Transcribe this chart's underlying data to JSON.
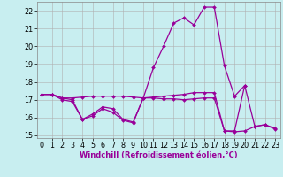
{
  "x": [
    0,
    1,
    2,
    3,
    4,
    5,
    6,
    7,
    8,
    9,
    10,
    11,
    12,
    13,
    14,
    15,
    16,
    17,
    18,
    19,
    20,
    21,
    22,
    23
  ],
  "line1": [
    17.3,
    17.3,
    17.1,
    17.1,
    17.15,
    17.2,
    17.2,
    17.2,
    17.2,
    17.15,
    17.1,
    17.15,
    17.2,
    17.25,
    17.3,
    17.4,
    17.4,
    17.4,
    15.25,
    15.25,
    17.8,
    15.5,
    15.6,
    15.4
  ],
  "line2": [
    17.3,
    17.3,
    17.1,
    17.0,
    15.9,
    16.2,
    16.6,
    16.5,
    15.9,
    15.75,
    17.1,
    18.8,
    20.0,
    21.3,
    21.6,
    21.2,
    22.2,
    22.2,
    18.9,
    17.2,
    17.8,
    null,
    null,
    null
  ],
  "line3": [
    17.3,
    17.3,
    17.0,
    16.9,
    15.9,
    16.1,
    16.5,
    16.3,
    15.85,
    15.7,
    17.1,
    17.1,
    17.05,
    17.05,
    17.0,
    17.05,
    17.1,
    17.1,
    15.25,
    15.2,
    15.25,
    15.5,
    15.6,
    15.35
  ],
  "line_color": "#990099",
  "bg_color": "#c8eef0",
  "grid_color": "#b0b0b0",
  "xlabel": "Windchill (Refroidissement éolien,°C)",
  "xlim": [
    -0.5,
    23.5
  ],
  "ylim": [
    14.85,
    22.5
  ],
  "yticks": [
    15,
    16,
    17,
    18,
    19,
    20,
    21,
    22
  ],
  "xticks": [
    0,
    1,
    2,
    3,
    4,
    5,
    6,
    7,
    8,
    9,
    10,
    11,
    12,
    13,
    14,
    15,
    16,
    17,
    18,
    19,
    20,
    21,
    22,
    23
  ],
  "axis_fontsize": 6.0,
  "tick_fontsize": 5.8
}
